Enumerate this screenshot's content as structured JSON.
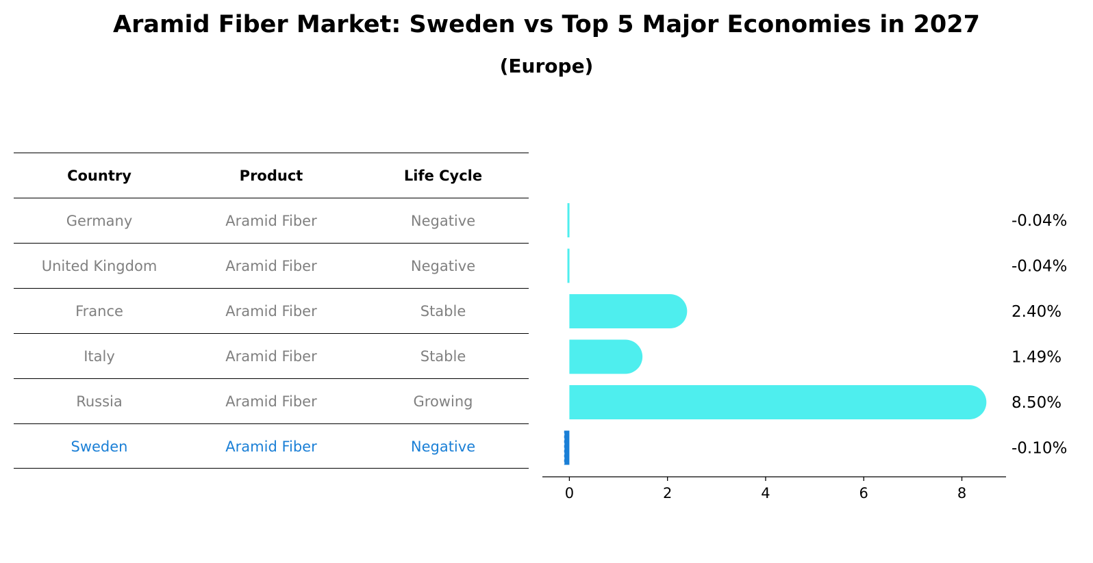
{
  "title": "Aramid Fiber Market: Sweden vs Top 5 Major Economies in 2027",
  "subtitle": "(Europe)",
  "table": {
    "headers": [
      "Country",
      "Product",
      "Life Cycle"
    ],
    "rows": [
      {
        "country": "Germany",
        "product": "Aramid Fiber",
        "life_cycle": "Negative"
      },
      {
        "country": "United Kingdom",
        "product": "Aramid Fiber",
        "life_cycle": "Negative"
      },
      {
        "country": "France",
        "product": "Aramid Fiber",
        "life_cycle": "Stable"
      },
      {
        "country": "Italy",
        "product": "Aramid Fiber",
        "life_cycle": "Stable"
      },
      {
        "country": "Russia",
        "product": "Aramid Fiber",
        "life_cycle": "Growing"
      },
      {
        "country": "Sweden",
        "product": "Aramid Fiber",
        "life_cycle": "Negative"
      }
    ]
  },
  "colors": {
    "bar": "#4eeeee",
    "highlight": "#1a7fd6",
    "row_text": "#808080"
  },
  "chart_data": {
    "type": "bar",
    "orientation": "horizontal",
    "categories": [
      "Germany",
      "United Kingdom",
      "France",
      "Italy",
      "Russia",
      "Sweden"
    ],
    "values": [
      -0.04,
      -0.04,
      2.4,
      1.49,
      8.5,
      -0.1
    ],
    "value_labels": [
      "-0.04%",
      "-0.04%",
      "2.40%",
      "1.49%",
      "8.50%",
      "-0.10%"
    ],
    "highlight_category": "Sweden",
    "xlim": [
      -0.55,
      8.9
    ],
    "xticks": [
      0,
      2,
      4,
      6,
      8
    ],
    "xtick_labels": [
      "0",
      "2",
      "4",
      "6",
      "8"
    ],
    "grid": false
  }
}
